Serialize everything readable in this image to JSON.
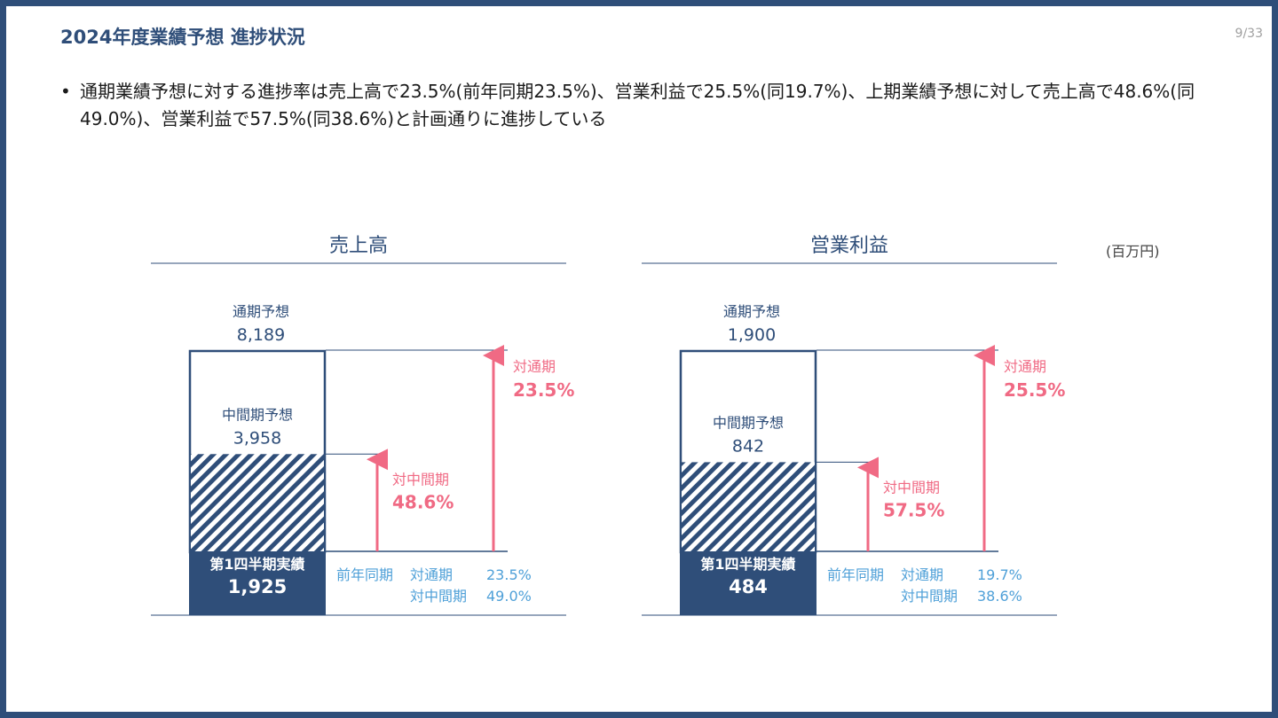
{
  "page": {
    "title": "2024年度業績予想 進捗状況",
    "page_number": "9/33",
    "bullet_marker": "•",
    "bullet_text": "通期業績予想に対する進捗率は売上高で23.5%(前年同期23.5%)、営業利益で25.5%(同19.7%)、上期業績予想に対して売上高で48.6%(同49.0%)、営業利益で57.5%(同38.6%)と計画通りに進捗している",
    "unit": "(百万円)"
  },
  "colors": {
    "navy": "#2f4e79",
    "pink": "#f06a84",
    "light_blue": "#4fa0d8",
    "text": "#1a1a1a"
  },
  "chart_data": [
    {
      "type": "bar",
      "title": "売上高",
      "full_year_label": "通期予想",
      "full_year_value": 8189,
      "full_year_text": "8,189",
      "half_year_label": "中間期予想",
      "half_year_value": 3958,
      "half_year_text": "3,958",
      "actual_label": "第1四半期実績",
      "actual_value": 1925,
      "actual_text": "1,925",
      "progress_full_label": "対通期",
      "progress_full_text": "23.5%",
      "progress_half_label": "対中間期",
      "progress_half_text": "48.6%",
      "prior_year_label": "前年同期",
      "prior_full_label": "対通期",
      "prior_full_text": "23.5%",
      "prior_half_label": "対中間期",
      "prior_half_text": "49.0%"
    },
    {
      "type": "bar",
      "title": "営業利益",
      "full_year_label": "通期予想",
      "full_year_value": 1900,
      "full_year_text": "1,900",
      "half_year_label": "中間期予想",
      "half_year_value": 842,
      "half_year_text": "842",
      "actual_label": "第1四半期実績",
      "actual_value": 484,
      "actual_text": "484",
      "progress_full_label": "対通期",
      "progress_full_text": "25.5%",
      "progress_half_label": "対中間期",
      "progress_half_text": "57.5%",
      "prior_year_label": "前年同期",
      "prior_full_label": "対通期",
      "prior_full_text": "19.7%",
      "prior_half_label": "対中間期",
      "prior_half_text": "38.6%"
    }
  ]
}
